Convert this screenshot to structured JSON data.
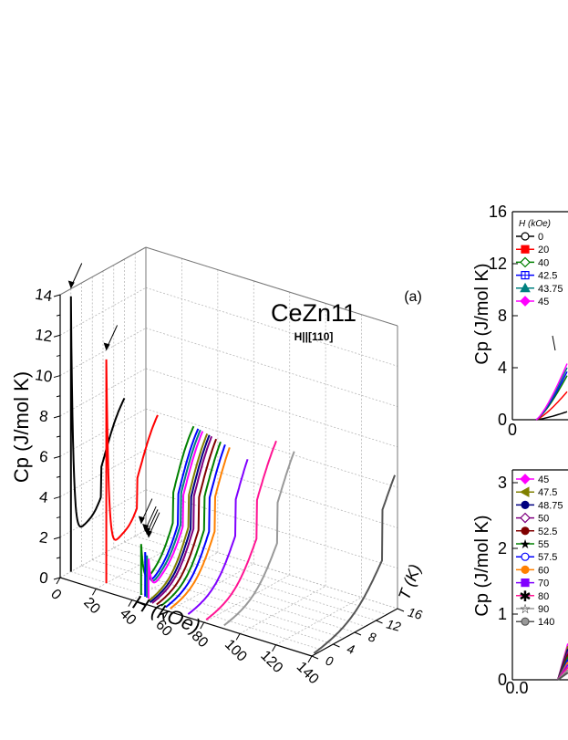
{
  "chart_data": [
    {
      "type": "line",
      "title": "CeZn11",
      "subtitle": "H||[110]",
      "panel_label": "(a)",
      "xlabel": "H (kOe)",
      "ylabel": "Cp (J/mol K)",
      "zlabel": "T (K)",
      "x_ticks": [
        "0",
        "20",
        "40",
        "60",
        "80",
        "100",
        "120",
        "140"
      ],
      "y_ticks": [
        "0",
        "2",
        "4",
        "6",
        "8",
        "10",
        "12",
        "14"
      ],
      "z_ticks": [
        "0",
        "4",
        "8",
        "12",
        "16"
      ],
      "xlim": [
        0,
        140
      ],
      "ylim": [
        0,
        14
      ],
      "zlim": [
        0,
        16
      ],
      "grid": true,
      "series": [
        {
          "field": 0,
          "color": "#000000",
          "peak": 14.0,
          "peak_T": 2.0,
          "arrow": true
        },
        {
          "field": 20,
          "color": "#ff0000",
          "peak": 11.5,
          "peak_T": 1.9,
          "arrow": true
        },
        {
          "field": 40,
          "color": "#008000",
          "peak": 3.5,
          "peak_T": 1.7,
          "arrow": true
        },
        {
          "field": 42.5,
          "color": "#0000ff",
          "peak": 3.2,
          "peak_T": 1.6,
          "arrow": true
        },
        {
          "field": 43.75,
          "color": "#008080",
          "peak": 3.1,
          "peak_T": 1.5,
          "arrow": true
        },
        {
          "field": 45,
          "color": "#ff00ff",
          "peak": 3.0,
          "peak_T": 1.4,
          "arrow": true
        },
        {
          "field": 47.5,
          "color": "#808000",
          "peak": 0,
          "peak_T": 0,
          "arrow": false
        },
        {
          "field": 48.75,
          "color": "#000080",
          "peak": 0,
          "peak_T": 0,
          "arrow": false
        },
        {
          "field": 50,
          "color": "#800080",
          "peak": 0,
          "peak_T": 0,
          "arrow": false
        },
        {
          "field": 52.5,
          "color": "#800000",
          "peak": 0,
          "peak_T": 0,
          "arrow": false
        },
        {
          "field": 55,
          "color": "#008000",
          "peak": 0,
          "peak_T": 0,
          "arrow": false
        },
        {
          "field": 57.5,
          "color": "#0000ff",
          "peak": 0,
          "peak_T": 0,
          "arrow": false
        },
        {
          "field": 60,
          "color": "#ff8000",
          "peak": 0,
          "peak_T": 0,
          "arrow": false
        },
        {
          "field": 70,
          "color": "#8000ff",
          "peak": 0,
          "peak_T": 0,
          "arrow": false
        },
        {
          "field": 80,
          "color": "#ff1493",
          "peak": 0,
          "peak_T": 0,
          "arrow": false
        },
        {
          "field": 90,
          "color": "#999999",
          "peak": 0,
          "peak_T": 0,
          "arrow": false
        },
        {
          "field": 140,
          "color": "#555555",
          "peak": 0,
          "peak_T": 0,
          "arrow": false
        }
      ]
    },
    {
      "type": "line",
      "xlabel": "",
      "ylabel": "Cp (J/mol K)",
      "y_ticks": [
        "0",
        "4",
        "8",
        "12",
        "16"
      ],
      "x_tick_first": "0",
      "ylim": [
        0,
        16
      ],
      "legend_title": "H (kOe)",
      "legend_position": "top-left",
      "series": [
        {
          "name": "0",
          "color": "#000000",
          "marker": "circle-open"
        },
        {
          "name": "20",
          "color": "#ff0000",
          "marker": "square"
        },
        {
          "name": "40",
          "color": "#008000",
          "marker": "diamond-open"
        },
        {
          "name": "42.5",
          "color": "#0000ff",
          "marker": "square-cross"
        },
        {
          "name": "43.75",
          "color": "#008080",
          "marker": "triangle"
        },
        {
          "name": "45",
          "color": "#ff00ff",
          "marker": "diamond"
        }
      ]
    },
    {
      "type": "line",
      "xlabel": "",
      "ylabel": "Cp (J/mol K)",
      "y_ticks": [
        "0",
        "1",
        "2",
        "3"
      ],
      "x_tick_first": "0.0",
      "ylim": [
        0,
        3
      ],
      "legend_position": "top-left",
      "series": [
        {
          "name": "45",
          "color": "#ff00ff",
          "marker": "diamond"
        },
        {
          "name": "47.5",
          "color": "#808000",
          "marker": "triangle-left"
        },
        {
          "name": "48.75",
          "color": "#000080",
          "marker": "hexagon"
        },
        {
          "name": "50",
          "color": "#800080",
          "marker": "diamond-open"
        },
        {
          "name": "52.5",
          "color": "#800000",
          "marker": "circle"
        },
        {
          "name": "55",
          "color": "#008000",
          "marker": "star"
        },
        {
          "name": "57.5",
          "color": "#0000ff",
          "marker": "circle-open"
        },
        {
          "name": "60",
          "color": "#ff8000",
          "marker": "circle"
        },
        {
          "name": "70",
          "color": "#8000ff",
          "marker": "square-half"
        },
        {
          "name": "80",
          "color": "#ff1493",
          "marker": "asterisk"
        },
        {
          "name": "90",
          "color": "#999999",
          "marker": "star-open"
        },
        {
          "name": "140",
          "color": "#555555",
          "marker": "circle-half"
        }
      ]
    }
  ]
}
